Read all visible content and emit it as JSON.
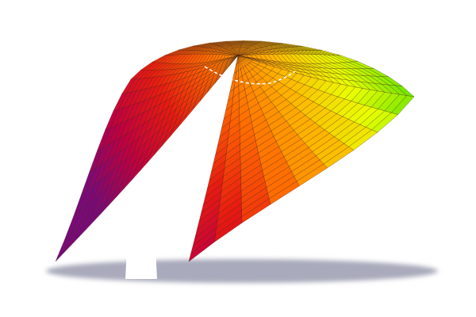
{
  "scene": {
    "subject": "colored-wireframe-surface",
    "colormap": [
      "#7a0a78",
      "#c00040",
      "#e81a10",
      "#ff6a00",
      "#ffb300",
      "#e8ff00",
      "#58e000"
    ],
    "mesh_line_color": "#3a1a10",
    "shadow_color": "#a9aabb",
    "dashed_curve_color": "#ffffff",
    "background_color": "#ffffff"
  }
}
